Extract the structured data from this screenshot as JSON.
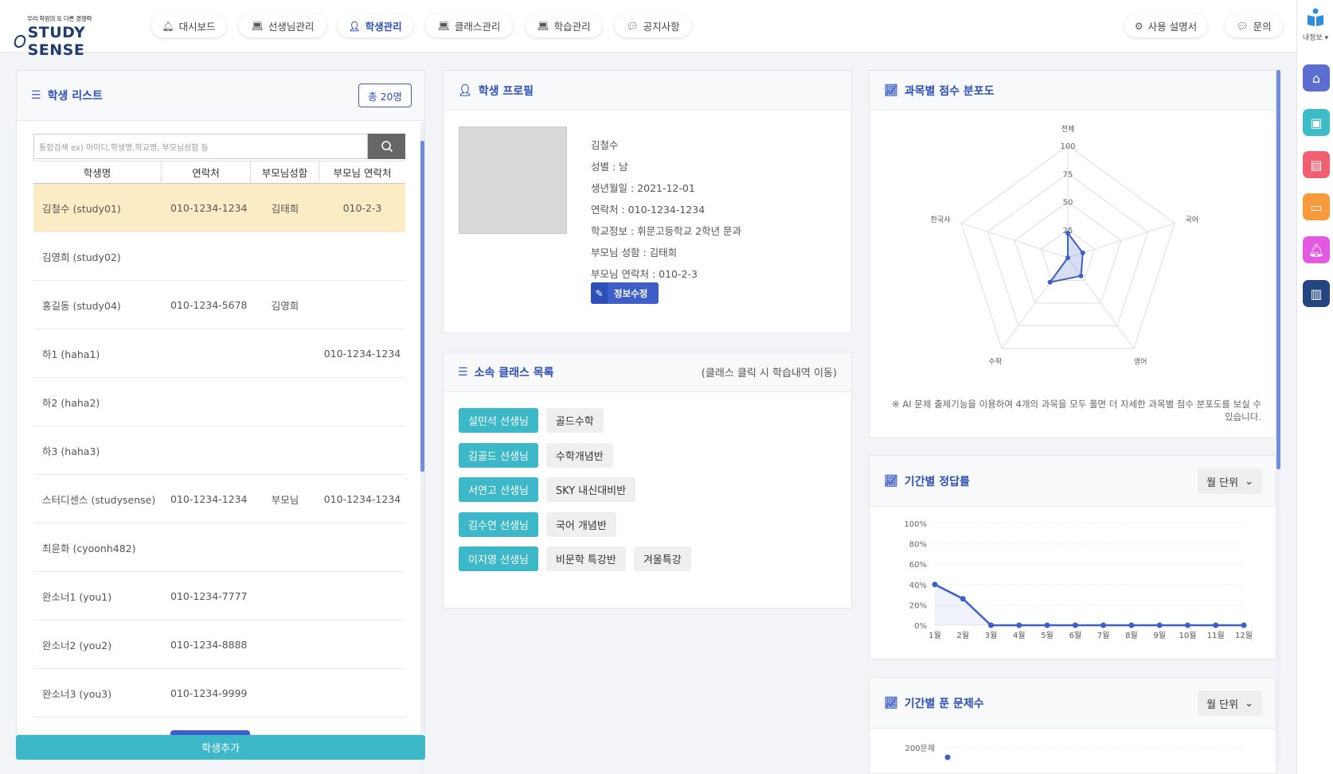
{
  "logo": {
    "tagline": "우리 학원의 또 다른 경쟁력",
    "brand": "STUDY SENSE"
  },
  "nav": [
    {
      "label": "대시보드",
      "icon": "bell-icon"
    },
    {
      "label": "선생님관리",
      "icon": "laptop-icon"
    },
    {
      "label": "학생관리",
      "icon": "user-icon",
      "active": true
    },
    {
      "label": "클래스관리",
      "icon": "laptop-icon"
    },
    {
      "label": "학습관리",
      "icon": "laptop-icon"
    },
    {
      "label": "공지사항",
      "icon": "chat-icon"
    }
  ],
  "nav_right": [
    {
      "label": "사용 설명서",
      "icon": "gear-icon"
    },
    {
      "label": "문의",
      "icon": "chat-icon"
    }
  ],
  "rail": {
    "label": "내정보"
  },
  "student_list": {
    "title": "학생 리스트",
    "total": "총 20명",
    "search_placeholder": "통합검색 ex) 아이디,학생명,학교명, 부모님성함 등",
    "columns": [
      "학생명",
      "연락처",
      "부모님성함",
      "부모님 연락처"
    ],
    "rows": [
      {
        "name": "김철수 (study01)",
        "phone": "010-1234-1234",
        "parent": "김태희",
        "parent_phone": "010-2-3",
        "selected": true
      },
      {
        "name": "김영희 (study02)",
        "phone": "",
        "parent": "",
        "parent_phone": ""
      },
      {
        "name": "홍길동 (study04)",
        "phone": "010-1234-5678",
        "parent": "김영희",
        "parent_phone": ""
      },
      {
        "name": "하1 (haha1)",
        "phone": "",
        "parent": "",
        "parent_phone": "010-1234-1234"
      },
      {
        "name": "하2 (haha2)",
        "phone": "",
        "parent": "",
        "parent_phone": ""
      },
      {
        "name": "하3 (haha3)",
        "phone": "",
        "parent": "",
        "parent_phone": ""
      },
      {
        "name": "스터디센스 (studysense)",
        "phone": "010-1234-1234",
        "parent": "부모님",
        "parent_phone": "010-1234-1234"
      },
      {
        "name": "최윤화 (cyoonh482)",
        "phone": "",
        "parent": "",
        "parent_phone": ""
      },
      {
        "name": "완소너1 (you1)",
        "phone": "010-1234-7777",
        "parent": "",
        "parent_phone": ""
      },
      {
        "name": "완소너2 (you2)",
        "phone": "010-1234-8888",
        "parent": "",
        "parent_phone": ""
      },
      {
        "name": "완소너3 (you3)",
        "phone": "010-1234-9999",
        "parent": "",
        "parent_phone": ""
      }
    ],
    "add_button": "학생추가"
  },
  "profile": {
    "title": "학생 프로필",
    "name": "김철수",
    "gender": "성별 : 남",
    "birth": "생년월일 : 2021-12-01",
    "phone": "연락처 : 010-1234-1234",
    "school": "학교정보 : 휘문고등학교 2학년 문과",
    "parent_name": "부모님 성함 : 김태희",
    "parent_phone": "부모님 연락처 : 010-2-3",
    "edit_button": "정보수정"
  },
  "class_list": {
    "title": "소속 클래스 목록",
    "hint": "(클래스 클릭 시 학습내역 이동)",
    "rows": [
      {
        "teacher": "설민석 선생님",
        "classes": [
          "골드수학"
        ]
      },
      {
        "teacher": "김골드 선생님",
        "classes": [
          "수학개념반"
        ]
      },
      {
        "teacher": "서연고 선생님",
        "classes": [
          "SKY 내신대비반"
        ]
      },
      {
        "teacher": "김수연 선생님",
        "classes": [
          "국어 개념반"
        ]
      },
      {
        "teacher": "이지영 선생님",
        "classes": [
          "비문학 특강반",
          "겨울특강"
        ]
      }
    ]
  },
  "radar": {
    "title": "과목별 점수 분포도",
    "note": "※ AI 문제 출제기능을 이용하여 4개의 과목을 모두 풀면 더 자세한 과목별 점수 분포도를 보실 수 있습니다."
  },
  "accuracy": {
    "title": "기간별 정답률",
    "unit": "월 단위"
  },
  "solved": {
    "title": "기간별 푼 문제수",
    "unit": "월 단위"
  },
  "colors": {
    "primary": "#3d5fc7",
    "teal": "#3db8c9",
    "selected_row": "#fcecc6"
  },
  "chart_data": [
    {
      "type": "radar",
      "title": "과목별 점수 분포도",
      "categories": [
        "전체",
        "국어",
        "영어",
        "수학",
        "한국사"
      ],
      "values": [
        22,
        14,
        20,
        27,
        0
      ],
      "ticks": [
        25,
        50,
        75,
        100
      ],
      "ylim": [
        0,
        100
      ]
    },
    {
      "type": "area",
      "title": "기간별 정답률",
      "categories": [
        "1월",
        "2월",
        "3월",
        "4월",
        "5월",
        "6월",
        "7월",
        "8월",
        "9월",
        "10월",
        "11월",
        "12월"
      ],
      "values": [
        40,
        26,
        0,
        0,
        0,
        0,
        0,
        0,
        0,
        0,
        0,
        0
      ],
      "ticks": [
        "0%",
        "20%",
        "40%",
        "60%",
        "80%",
        "100%"
      ],
      "ylim": [
        0,
        100
      ]
    },
    {
      "type": "line",
      "title": "기간별 푼 문제수",
      "y_tick_visible": "200문제"
    }
  ]
}
